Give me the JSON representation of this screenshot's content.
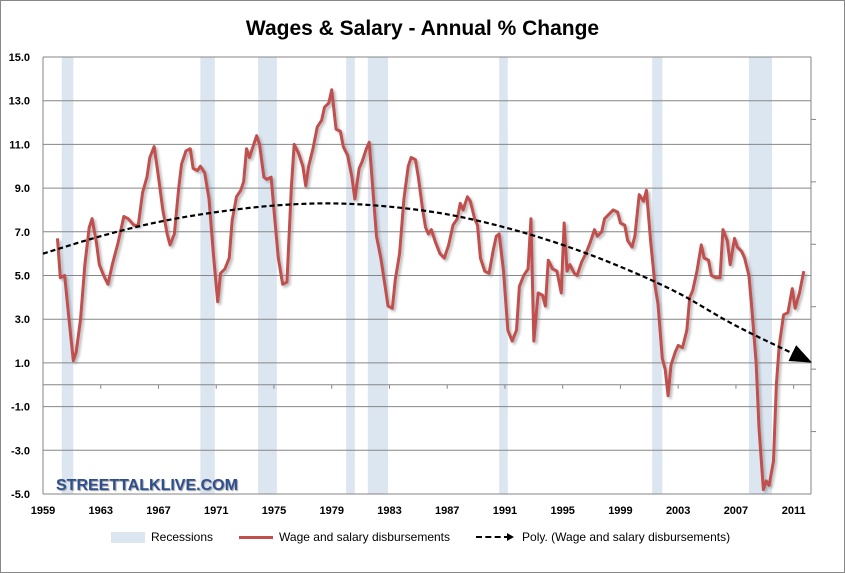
{
  "chart_data": {
    "type": "line",
    "title": "Wages & Salary - Annual % Change",
    "xlabel": "",
    "ylabel": "",
    "xlim": [
      1959,
      2012.2
    ],
    "ylim": [
      -5,
      15
    ],
    "x_ticks": [
      "1959",
      "1963",
      "1967",
      "1971",
      "1975",
      "1979",
      "1983",
      "1987",
      "1991",
      "1995",
      "1999",
      "2003",
      "2007",
      "2011"
    ],
    "y_ticks": [
      "15.0",
      "13.0",
      "11.0",
      "9.0",
      "7.0",
      "5.0",
      "3.0",
      "1.0",
      "-1.0",
      "-3.0",
      "-5.0"
    ],
    "grid": true,
    "legend_position": "bottom",
    "legend": [
      "Recessions",
      "Wage and salary disbursements",
      "Poly. (Wage and salary disbursements)"
    ],
    "recessions": [
      [
        1960.3,
        1961.1
      ],
      [
        1969.9,
        1970.9
      ],
      [
        1973.9,
        1975.2
      ],
      [
        1980.0,
        1980.6
      ],
      [
        1981.5,
        1982.9
      ],
      [
        1990.6,
        1991.2
      ],
      [
        2001.2,
        2001.9
      ],
      [
        2007.9,
        2009.5
      ]
    ],
    "series": [
      {
        "name": "Wage and salary disbursements",
        "color": "#c0504d",
        "points": [
          [
            1960.0,
            6.7
          ],
          [
            1960.2,
            4.9
          ],
          [
            1960.5,
            5.0
          ],
          [
            1960.8,
            3.0
          ],
          [
            1961.1,
            1.1
          ],
          [
            1961.3,
            1.5
          ],
          [
            1961.6,
            3.0
          ],
          [
            1961.9,
            5.5
          ],
          [
            1962.2,
            7.2
          ],
          [
            1962.4,
            7.6
          ],
          [
            1962.7,
            6.5
          ],
          [
            1962.9,
            5.5
          ],
          [
            1963.2,
            5.0
          ],
          [
            1963.5,
            4.6
          ],
          [
            1963.8,
            5.5
          ],
          [
            1964.2,
            6.5
          ],
          [
            1964.6,
            7.7
          ],
          [
            1964.9,
            7.6
          ],
          [
            1965.3,
            7.3
          ],
          [
            1965.6,
            7.3
          ],
          [
            1965.9,
            8.8
          ],
          [
            1966.2,
            9.5
          ],
          [
            1966.4,
            10.4
          ],
          [
            1966.7,
            10.9
          ],
          [
            1967.0,
            9.5
          ],
          [
            1967.3,
            8.0
          ],
          [
            1967.6,
            6.9
          ],
          [
            1967.8,
            6.4
          ],
          [
            1968.1,
            6.9
          ],
          [
            1968.4,
            9.0
          ],
          [
            1968.6,
            10.1
          ],
          [
            1968.9,
            10.7
          ],
          [
            1969.2,
            10.8
          ],
          [
            1969.4,
            9.9
          ],
          [
            1969.7,
            9.8
          ],
          [
            1969.9,
            10.0
          ],
          [
            1970.2,
            9.7
          ],
          [
            1970.5,
            8.5
          ],
          [
            1970.8,
            6.0
          ],
          [
            1971.1,
            3.8
          ],
          [
            1971.3,
            5.1
          ],
          [
            1971.6,
            5.3
          ],
          [
            1971.9,
            5.8
          ],
          [
            1972.1,
            7.5
          ],
          [
            1972.4,
            8.6
          ],
          [
            1972.7,
            8.9
          ],
          [
            1972.9,
            9.3
          ],
          [
            1973.1,
            10.8
          ],
          [
            1973.3,
            10.4
          ],
          [
            1973.6,
            11.0
          ],
          [
            1973.8,
            11.4
          ],
          [
            1974.0,
            11.0
          ],
          [
            1974.3,
            9.5
          ],
          [
            1974.5,
            9.4
          ],
          [
            1974.8,
            9.5
          ],
          [
            1975.0,
            8.0
          ],
          [
            1975.3,
            5.8
          ],
          [
            1975.6,
            4.6
          ],
          [
            1975.9,
            4.7
          ],
          [
            1976.2,
            9.0
          ],
          [
            1976.4,
            11.0
          ],
          [
            1976.7,
            10.6
          ],
          [
            1977.0,
            10.0
          ],
          [
            1977.2,
            9.1
          ],
          [
            1977.4,
            10.0
          ],
          [
            1977.7,
            10.8
          ],
          [
            1978.0,
            11.8
          ],
          [
            1978.3,
            12.1
          ],
          [
            1978.5,
            12.7
          ],
          [
            1978.8,
            12.9
          ],
          [
            1979.0,
            13.5
          ],
          [
            1979.3,
            11.7
          ],
          [
            1979.6,
            11.6
          ],
          [
            1979.8,
            10.9
          ],
          [
            1980.1,
            10.5
          ],
          [
            1980.4,
            9.5
          ],
          [
            1980.6,
            8.5
          ],
          [
            1980.9,
            9.9
          ],
          [
            1981.1,
            10.2
          ],
          [
            1981.4,
            10.8
          ],
          [
            1981.6,
            11.1
          ],
          [
            1981.9,
            8.5
          ],
          [
            1982.1,
            6.8
          ],
          [
            1982.4,
            5.8
          ],
          [
            1982.7,
            4.5
          ],
          [
            1982.9,
            3.6
          ],
          [
            1983.2,
            3.5
          ],
          [
            1983.4,
            4.8
          ],
          [
            1983.7,
            6.0
          ],
          [
            1984.0,
            8.5
          ],
          [
            1984.3,
            10.0
          ],
          [
            1984.5,
            10.4
          ],
          [
            1984.8,
            10.3
          ],
          [
            1985.0,
            9.5
          ],
          [
            1985.3,
            8.0
          ],
          [
            1985.5,
            7.2
          ],
          [
            1985.7,
            6.9
          ],
          [
            1985.9,
            7.1
          ],
          [
            1986.2,
            6.5
          ],
          [
            1986.5,
            6.0
          ],
          [
            1986.8,
            5.8
          ],
          [
            1987.1,
            6.4
          ],
          [
            1987.4,
            7.3
          ],
          [
            1987.7,
            7.6
          ],
          [
            1987.9,
            8.3
          ],
          [
            1988.1,
            8.0
          ],
          [
            1988.4,
            8.6
          ],
          [
            1988.6,
            8.4
          ],
          [
            1988.9,
            7.6
          ],
          [
            1989.1,
            7.3
          ],
          [
            1989.3,
            5.8
          ],
          [
            1989.6,
            5.2
          ],
          [
            1989.9,
            5.1
          ],
          [
            1990.2,
            6.2
          ],
          [
            1990.4,
            6.8
          ],
          [
            1990.6,
            6.9
          ],
          [
            1990.9,
            5.2
          ],
          [
            1991.2,
            2.5
          ],
          [
            1991.5,
            2.0
          ],
          [
            1991.8,
            2.5
          ],
          [
            1992.0,
            4.5
          ],
          [
            1992.3,
            5.0
          ],
          [
            1992.6,
            5.3
          ],
          [
            1992.8,
            7.6
          ],
          [
            1993.0,
            2.0
          ],
          [
            1993.3,
            4.2
          ],
          [
            1993.6,
            4.1
          ],
          [
            1993.8,
            3.6
          ],
          [
            1994.0,
            5.7
          ],
          [
            1994.3,
            5.3
          ],
          [
            1994.6,
            5.2
          ],
          [
            1994.9,
            4.2
          ],
          [
            1995.1,
            7.4
          ],
          [
            1995.3,
            5.2
          ],
          [
            1995.5,
            5.5
          ],
          [
            1995.8,
            5.1
          ],
          [
            1996.0,
            5.0
          ],
          [
            1996.3,
            5.6
          ],
          [
            1996.6,
            6.0
          ],
          [
            1996.9,
            6.5
          ],
          [
            1997.2,
            7.1
          ],
          [
            1997.4,
            6.8
          ],
          [
            1997.7,
            7.0
          ],
          [
            1997.9,
            7.6
          ],
          [
            1998.2,
            7.8
          ],
          [
            1998.5,
            8.0
          ],
          [
            1998.8,
            7.9
          ],
          [
            1999.0,
            7.4
          ],
          [
            1999.3,
            7.3
          ],
          [
            1999.5,
            6.6
          ],
          [
            1999.8,
            6.3
          ],
          [
            2000.0,
            6.8
          ],
          [
            2000.3,
            8.7
          ],
          [
            2000.6,
            8.4
          ],
          [
            2000.8,
            8.9
          ],
          [
            2001.1,
            6.5
          ],
          [
            2001.4,
            4.5
          ],
          [
            2001.6,
            3.7
          ],
          [
            2001.9,
            1.2
          ],
          [
            2002.1,
            0.7
          ],
          [
            2002.3,
            -0.5
          ],
          [
            2002.5,
            0.9
          ],
          [
            2002.8,
            1.5
          ],
          [
            2003.0,
            1.8
          ],
          [
            2003.3,
            1.7
          ],
          [
            2003.6,
            2.5
          ],
          [
            2003.8,
            4.0
          ],
          [
            2004.0,
            4.3
          ],
          [
            2004.3,
            5.2
          ],
          [
            2004.6,
            6.4
          ],
          [
            2004.8,
            5.8
          ],
          [
            2005.1,
            5.7
          ],
          [
            2005.3,
            5.0
          ],
          [
            2005.6,
            4.9
          ],
          [
            2005.9,
            4.9
          ],
          [
            2006.1,
            7.1
          ],
          [
            2006.4,
            6.6
          ],
          [
            2006.6,
            5.5
          ],
          [
            2006.9,
            6.7
          ],
          [
            2007.1,
            6.3
          ],
          [
            2007.4,
            6.1
          ],
          [
            2007.6,
            5.8
          ],
          [
            2007.9,
            5.0
          ],
          [
            2008.1,
            3.5
          ],
          [
            2008.4,
            1.0
          ],
          [
            2008.6,
            -2.0
          ],
          [
            2008.9,
            -4.8
          ],
          [
            2009.1,
            -4.4
          ],
          [
            2009.3,
            -4.6
          ],
          [
            2009.6,
            -3.5
          ],
          [
            2009.8,
            0.0
          ],
          [
            2010.0,
            1.8
          ],
          [
            2010.3,
            3.2
          ],
          [
            2010.6,
            3.3
          ],
          [
            2010.9,
            4.4
          ],
          [
            2011.1,
            3.5
          ],
          [
            2011.4,
            4.2
          ],
          [
            2011.7,
            5.2
          ]
        ]
      },
      {
        "name": "Poly. (Wage and salary disbursements)",
        "color": "#000000",
        "points": [
          [
            1959,
            6.0
          ],
          [
            1963,
            6.8
          ],
          [
            1967,
            7.45
          ],
          [
            1971,
            7.9
          ],
          [
            1975,
            8.2
          ],
          [
            1979,
            8.3
          ],
          [
            1983,
            8.15
          ],
          [
            1987,
            7.8
          ],
          [
            1991,
            7.2
          ],
          [
            1995,
            6.4
          ],
          [
            1999,
            5.4
          ],
          [
            2003,
            4.2
          ],
          [
            2007,
            2.7
          ],
          [
            2012,
            1.1
          ]
        ]
      }
    ]
  },
  "watermark": "STREETTALKLIVE.COM"
}
